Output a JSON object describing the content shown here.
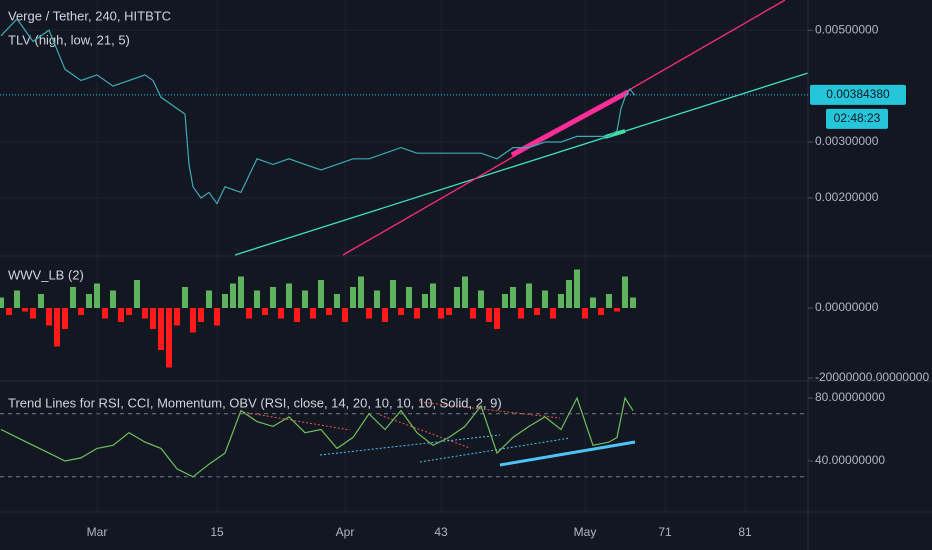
{
  "chart_data": [
    {
      "type": "line",
      "title": "Verge / Tether, 240, HITBTC",
      "subtitle": "TLV (high, low, 21, 5)",
      "x": [
        -12,
        -10,
        -8,
        -6,
        -4,
        -2,
        0,
        2,
        4,
        6,
        7,
        8,
        9,
        10,
        11,
        11.5,
        12,
        13,
        14,
        15,
        16,
        18,
        20,
        22,
        24,
        26,
        28,
        30,
        32,
        34,
        36,
        38,
        40,
        42,
        44,
        46,
        48,
        50,
        52,
        54,
        56,
        58,
        60,
        62,
        64,
        65,
        65.5,
        66,
        66.6,
        67.2
      ],
      "values": [
        0.0049,
        0.0052,
        0.0048,
        0.005,
        0.0043,
        0.0041,
        0.0042,
        0.004,
        0.0041,
        0.0042,
        0.0041,
        0.0038,
        0.0037,
        0.0036,
        0.0035,
        0.0026,
        0.0022,
        0.002,
        0.0021,
        0.0019,
        0.0022,
        0.0021,
        0.0027,
        0.0026,
        0.0027,
        0.0026,
        0.0025,
        0.0026,
        0.0027,
        0.0027,
        0.0028,
        0.0029,
        0.0028,
        0.0028,
        0.0028,
        0.0028,
        0.0028,
        0.0027,
        0.0029,
        0.0029,
        0.003,
        0.003,
        0.0031,
        0.0031,
        0.0031,
        0.0032,
        0.0036,
        0.0038,
        0.00395,
        0.00384
      ],
      "color": "#3fa9b5",
      "xlim": [
        -12.125,
        88.875
      ],
      "xticks": [
        {
          "value": 0,
          "label": "Mar"
        },
        15,
        {
          "value": 31,
          "label": "Apr"
        },
        43,
        {
          "value": 61,
          "label": "May"
        },
        71,
        81
      ],
      "ylim": [
        0.00098,
        0.00554
      ],
      "yticks": [
        {
          "value": 0.005,
          "label": "0.00500000"
        },
        {
          "value": 0.003,
          "label": "0.00300000"
        },
        {
          "value": 0.002,
          "label": "0.00200000"
        }
      ],
      "grid": true,
      "last_price": {
        "value": 0.0038438,
        "label": "0.00384380"
      },
      "countdown": "02:48:23"
    },
    {
      "type": "bar",
      "title": "WWV_LB (2)",
      "x": [
        -12,
        -11,
        -10,
        -9,
        -8,
        -7,
        -6,
        -5,
        -4,
        -3,
        -2,
        -1,
        0,
        1,
        2,
        3,
        4,
        5,
        6,
        7,
        8,
        9,
        10,
        11,
        12,
        13,
        14,
        15,
        16,
        17,
        18,
        19,
        20,
        21,
        22,
        23,
        24,
        25,
        26,
        27,
        28,
        29,
        30,
        31,
        32,
        33,
        34,
        35,
        36,
        37,
        38,
        39,
        40,
        41,
        42,
        43,
        44,
        45,
        46,
        47,
        48,
        49,
        50,
        51,
        52,
        53,
        54,
        55,
        56,
        57,
        58,
        59,
        60,
        61,
        62,
        63,
        64,
        65,
        66,
        67
      ],
      "values": [
        3000000.0,
        -2000000.0,
        5000000.0,
        -1000000.0,
        -3000000.0,
        4000000.0,
        -5000000.0,
        -11000000.0,
        -6000000.0,
        6000000.0,
        -2000000.0,
        4000000.0,
        7000000.0,
        -3000000.0,
        5000000.0,
        -4000000.0,
        -2000000.0,
        8000000.0,
        -3000000.0,
        -6000000.0,
        -12000000.0,
        -17000000.0,
        -5000000.0,
        6000000.0,
        -7000000.0,
        -4000000.0,
        5000000.0,
        -5000000.0,
        4000000.0,
        7000000.0,
        9000000.0,
        -3000000.0,
        5000000.0,
        -2000000.0,
        6000000.0,
        -3000000.0,
        7000000.0,
        -4000000.0,
        5000000.0,
        -3000000.0,
        8000000.0,
        -2000000.0,
        4000000.0,
        -4000000.0,
        6000000.0,
        9000000.0,
        -3000000.0,
        5000000.0,
        -4000000.0,
        8000000.0,
        -2000000.0,
        6000000.0,
        -3000000.0,
        4000000.0,
        7000000.0,
        -3000000.0,
        -2000000.0,
        6000000.0,
        9000000.0,
        -3000000.0,
        5000000.0,
        -4000000.0,
        -6000000.0,
        4000000.0,
        6000000.0,
        -3000000.0,
        7000000.0,
        -2000000.0,
        5000000.0,
        -3000000.0,
        4000000.0,
        8000000.0,
        11000000.0,
        -3000000.0,
        3000000.0,
        -2000000.0,
        4000000.0,
        -1000000.0,
        9000000.0,
        3000000.0
      ],
      "positive_color": "#5fb35f",
      "negative_color": "#ff1a1a",
      "xlim": [
        -12.125,
        88.875
      ],
      "ylim": [
        -20571429,
        14571429
      ],
      "yticks": [
        {
          "value": 0,
          "label": "0.00000000"
        },
        {
          "value": -20000000,
          "label": "-20000000.00000000"
        }
      ]
    },
    {
      "type": "line",
      "title": "Trend Lines for RSI, CCI, Momentum, OBV (RSI, close, 14, 20, 10, 10, 10, Solid, 2, 9)",
      "x": [
        -12,
        -10,
        -8,
        -6,
        -4,
        -2,
        0,
        2,
        4,
        6,
        8,
        10,
        12,
        14,
        16,
        18,
        20,
        22,
        24,
        26,
        28,
        30,
        32,
        34,
        36,
        38,
        40,
        42,
        44,
        46,
        48,
        50,
        52,
        54,
        56,
        58,
        60,
        62,
        64,
        65,
        66,
        67
      ],
      "values": [
        60,
        55,
        50,
        45,
        40,
        42,
        48,
        50,
        58,
        52,
        48,
        35,
        30,
        38,
        45,
        72,
        65,
        62,
        68,
        58,
        60,
        48,
        55,
        70,
        60,
        72,
        58,
        50,
        55,
        62,
        75,
        45,
        55,
        62,
        68,
        60,
        80,
        50,
        52,
        55,
        80,
        72
      ],
      "color": "#6fbf5f",
      "xlim": [
        -12.125,
        88.875
      ],
      "ylim": [
        7.62,
        90.16
      ],
      "yticks": [
        {
          "value": 80,
          "label": "80.00000000"
        },
        {
          "value": 40,
          "label": "40.00000000"
        }
      ],
      "levels": [
        70,
        30
      ]
    }
  ]
}
